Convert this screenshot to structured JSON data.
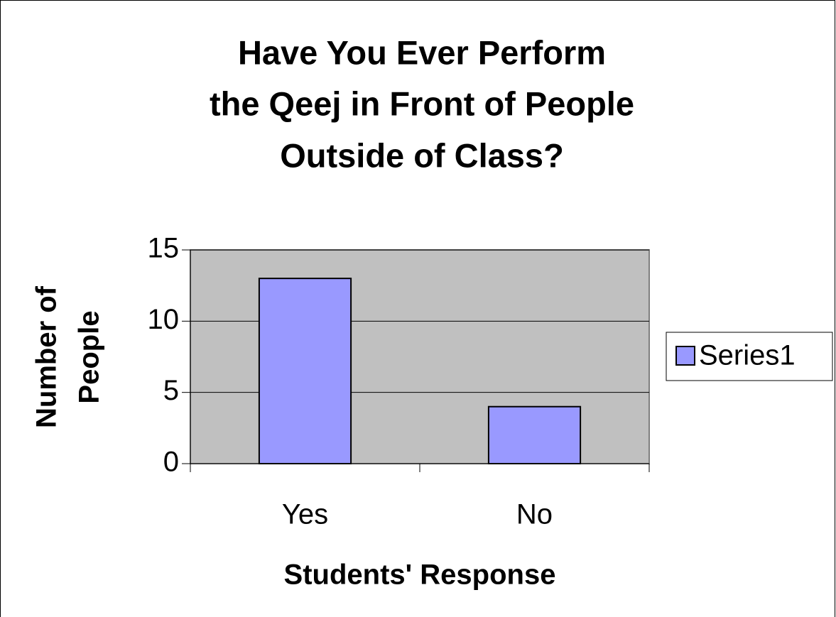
{
  "chart_data": {
    "type": "bar",
    "title": [
      "Have You Ever Perform",
      "the Qeej in Front of People",
      "Outside of Class?"
    ],
    "x_label": "Students' Response",
    "y_label": [
      "Number of",
      "People"
    ],
    "categories": [
      "Yes",
      "No"
    ],
    "series": [
      {
        "name": "Series1",
        "color": "#9999ff",
        "values": [
          13,
          4
        ]
      }
    ],
    "ylim": [
      0,
      15
    ],
    "yticks": [
      0,
      5,
      10,
      15
    ],
    "grid": true,
    "legend": "right"
  }
}
